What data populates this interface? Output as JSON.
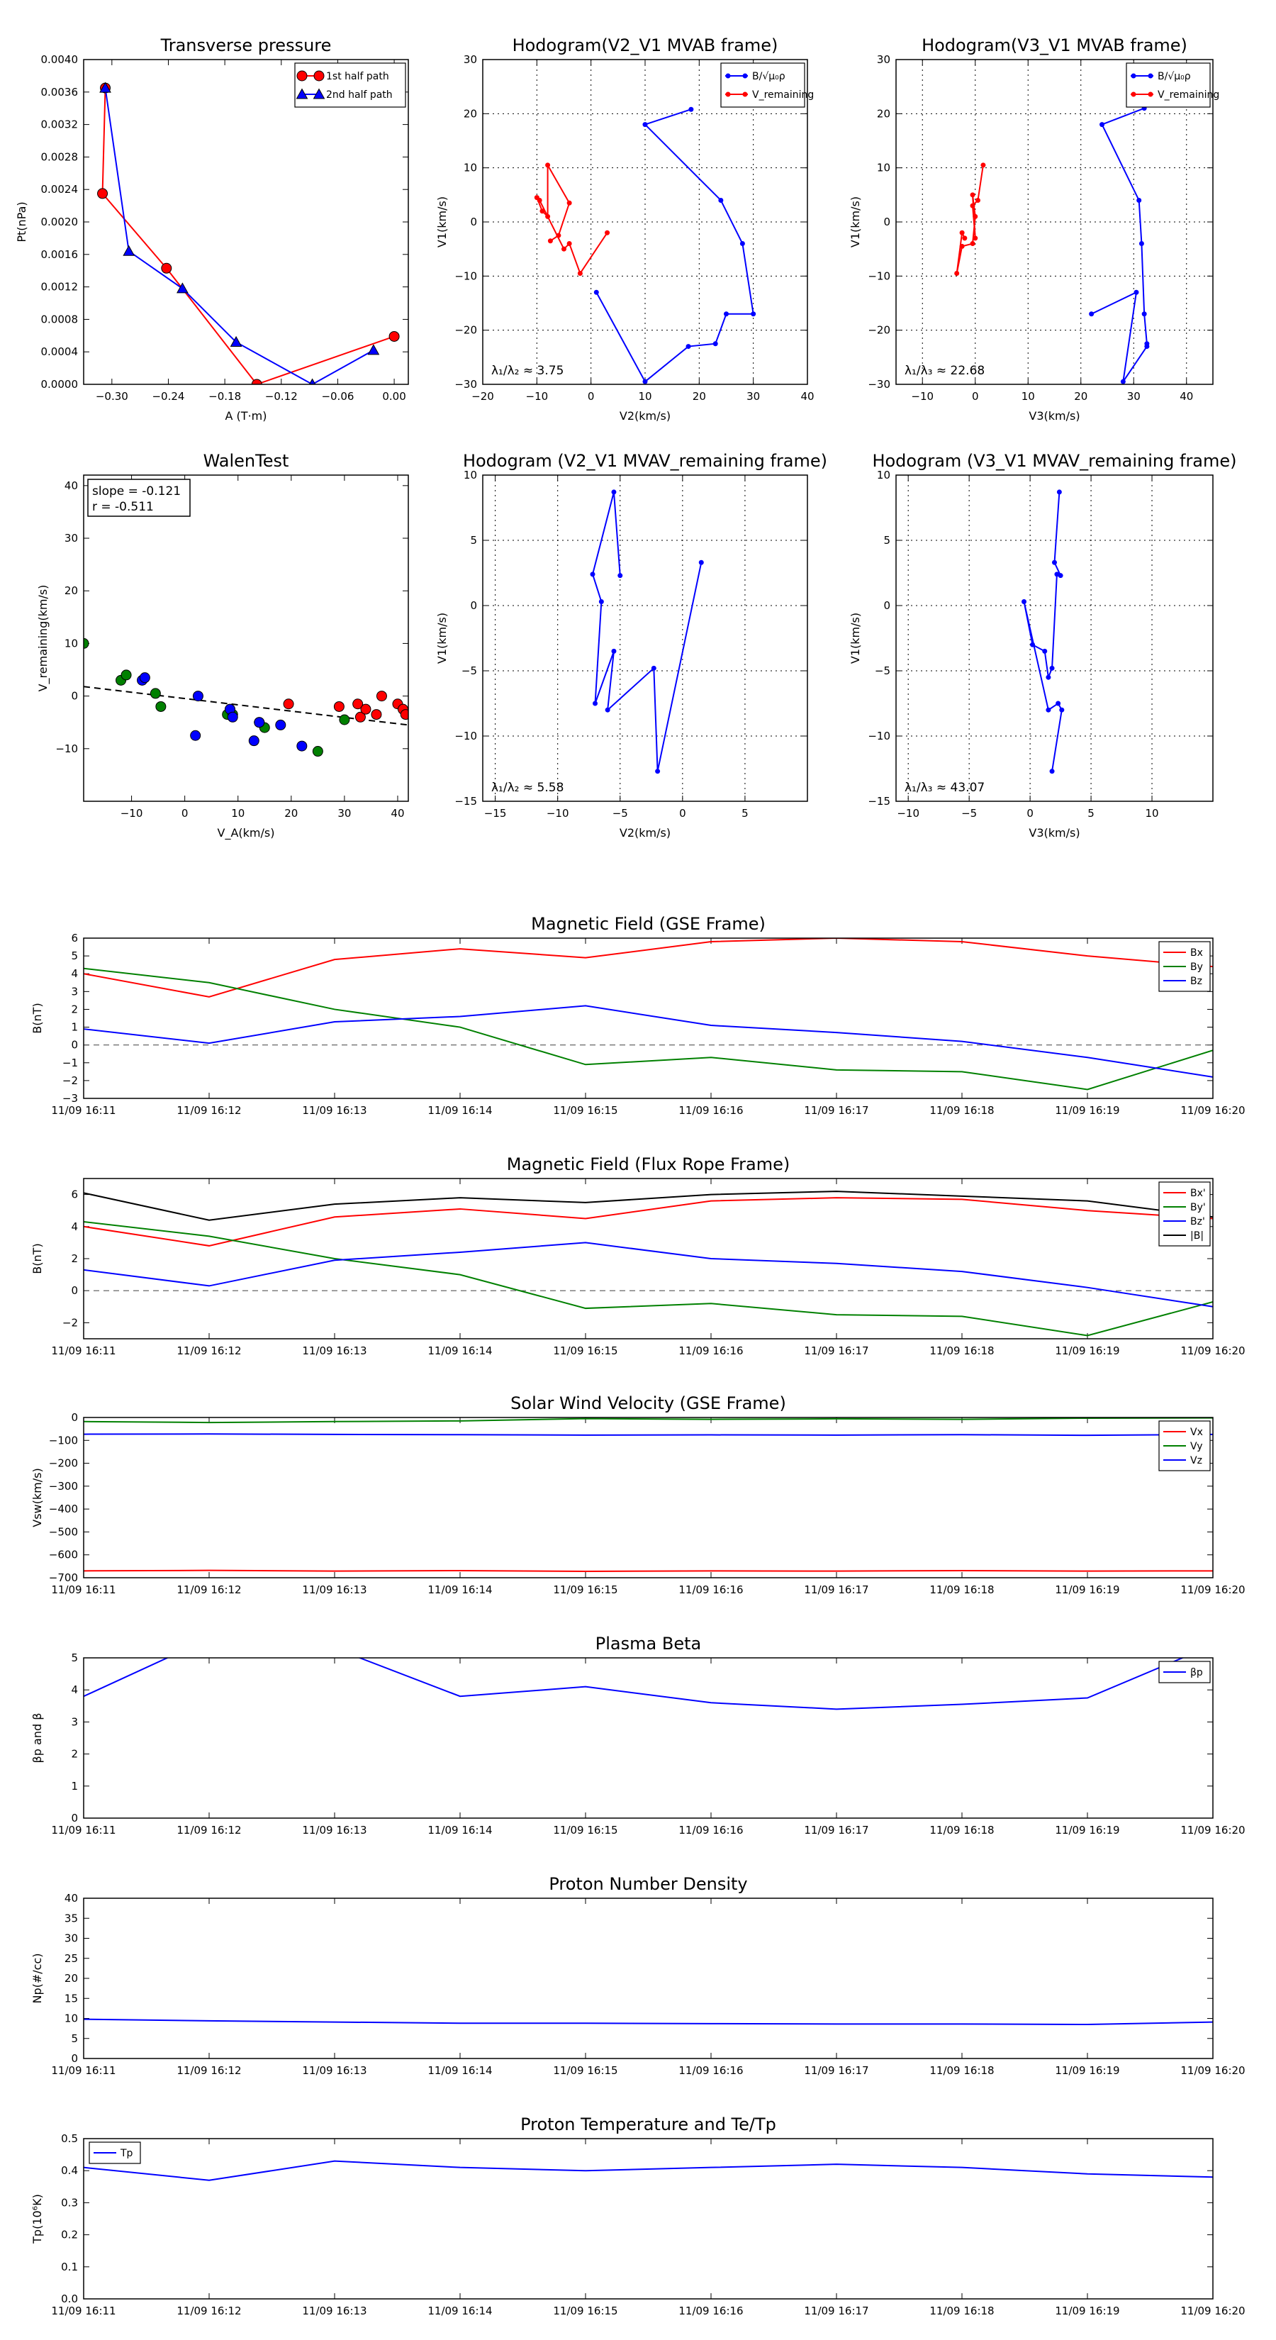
{
  "panels": [
    {
      "id": "tp",
      "title": "Transverse pressure",
      "xlabel": "A (T·m)",
      "ylabel": "Pt(nPa)",
      "xlim": [
        -0.33,
        0.015
      ],
      "ylim": [
        0,
        0.004
      ],
      "xticks": [
        -0.3,
        -0.24,
        -0.18,
        -0.12,
        -0.06,
        0.0
      ],
      "xticklabels": [
        "−0.30",
        "−0.24",
        "−0.18",
        "−0.12",
        "−0.06",
        "0.00"
      ],
      "yticks": [
        0,
        0.0004,
        0.0008,
        0.0012,
        0.0016,
        0.002,
        0.0024,
        0.0028,
        0.0032,
        0.0036,
        0.004
      ],
      "yticklabels": [
        "0.0000",
        "0.0004",
        "0.0008",
        "0.0012",
        "0.0016",
        "0.0020",
        "0.0024",
        "0.0028",
        "0.0032",
        "0.0036",
        "0.0040"
      ],
      "grid": false,
      "legend": "top-right",
      "series": [
        {
          "name": "1st half path",
          "color": "#ff0000",
          "marker": "circle",
          "x": [
            0.0,
            -0.146,
            -0.242,
            -0.31,
            -0.307
          ],
          "y": [
            0.00059,
            0.0,
            0.00143,
            0.00235,
            0.00365
          ]
        },
        {
          "name": "2nd half path",
          "color": "#0000ff",
          "marker": "triangle",
          "x": [
            -0.307,
            -0.282,
            -0.225,
            -0.168,
            -0.087,
            -0.022
          ],
          "y": [
            0.00365,
            0.00164,
            0.00118,
            0.00052,
            0.0,
            0.00042
          ]
        }
      ]
    },
    {
      "id": "h1",
      "title": "Hodogram(V2_V1 MVAB frame)",
      "xlabel": "V2(km/s)",
      "ylabel": "V1(km/s)",
      "xlim": [
        -20,
        40
      ],
      "ylim": [
        -30,
        30
      ],
      "xticks": [
        -20,
        -10,
        0,
        10,
        20,
        30,
        40
      ],
      "xticklabels": [
        "−20",
        "−10",
        "0",
        "10",
        "20",
        "30",
        "40"
      ],
      "yticks": [
        -30,
        -20,
        -10,
        0,
        10,
        20,
        30
      ],
      "yticklabels": [
        "−30",
        "−20",
        "−10",
        "0",
        "10",
        "20",
        "30"
      ],
      "grid": true,
      "legend": "top-right",
      "annotation": "λ₁/λ₂ ≈ 3.75",
      "series": [
        {
          "name": "B/√μ₀ρ",
          "color": "#0000ff",
          "marker": "dot",
          "x": [
            18.5,
            10,
            24,
            28,
            30,
            25,
            23,
            18,
            10,
            1
          ],
          "y": [
            20.8,
            18,
            4,
            -4,
            -17,
            -17,
            -22.5,
            -23,
            -29.5,
            -13
          ]
        },
        {
          "name": "V_remaining",
          "color": "#ff0000",
          "marker": "dot",
          "x": [
            3,
            -2,
            -4,
            -5,
            -9.5,
            -10,
            -9,
            -8,
            -8,
            -4,
            -6,
            -7.5
          ],
          "y": [
            -2,
            -9.5,
            -4,
            -5,
            4,
            4.5,
            2,
            1,
            10.5,
            3.5,
            -2.5,
            -3.5
          ]
        }
      ]
    },
    {
      "id": "h2",
      "title": "Hodogram(V3_V1 MVAB frame)",
      "xlabel": "V3(km/s)",
      "ylabel": "V1(km/s)",
      "xlim": [
        -15,
        45
      ],
      "ylim": [
        -30,
        30
      ],
      "xticks": [
        -10,
        0,
        10,
        20,
        30,
        40
      ],
      "xticklabels": [
        "−10",
        "0",
        "10",
        "20",
        "30",
        "40"
      ],
      "yticks": [
        -30,
        -20,
        -10,
        0,
        10,
        20,
        30
      ],
      "yticklabels": [
        "−30",
        "−20",
        "−10",
        "0",
        "10",
        "20",
        "30"
      ],
      "grid": true,
      "legend": "top-right",
      "annotation": "λ₁/λ₃ ≈ 22.68",
      "series": [
        {
          "name": "B/√μ₀ρ",
          "color": "#0000ff",
          "marker": "dot",
          "x": [
            32,
            24,
            31,
            31.5,
            32,
            32.5,
            32.5,
            28,
            30.5,
            22
          ],
          "y": [
            21,
            18,
            4,
            -4,
            -17,
            -22.5,
            -23,
            -29.5,
            -13,
            -17
          ]
        },
        {
          "name": "V_remaining",
          "color": "#ff0000",
          "marker": "dot",
          "x": [
            1.5,
            0.5,
            -0.5,
            0,
            -0.5,
            0,
            -0.5,
            -2.5,
            -3.5,
            -2.5,
            -2
          ],
          "y": [
            10.5,
            4,
            3,
            -3,
            5,
            1,
            -4,
            -4.5,
            -9.5,
            -2,
            -3
          ]
        }
      ]
    },
    {
      "id": "walen",
      "title": "WalenTest",
      "xlabel": "V_A(km/s)",
      "ylabel": "V_remaining(km/s)",
      "xlim": [
        -19,
        42
      ],
      "ylim": [
        -20,
        42
      ],
      "xticks": [
        -10,
        0,
        10,
        20,
        30,
        40
      ],
      "xticklabels": [
        "−10",
        "0",
        "10",
        "20",
        "30",
        "40"
      ],
      "yticks": [
        -10,
        0,
        10,
        20,
        30,
        40
      ],
      "yticklabels": [
        "−10",
        "0",
        "10",
        "20",
        "30",
        "40"
      ],
      "grid": false,
      "stats": {
        "slope": "slope = -0.121",
        "r": "r = -0.511"
      },
      "fit": {
        "x": [
          -19,
          42
        ],
        "y": [
          1.8,
          -5.5
        ]
      },
      "series": [
        {
          "name": "",
          "color": "#008000",
          "marker": "circle",
          "x": [
            -19,
            -12,
            -11,
            -5.5,
            -4.5,
            8,
            9,
            14,
            15,
            25,
            30
          ],
          "y": [
            10,
            3,
            4,
            0.5,
            -2,
            -3.5,
            -3.5,
            -5,
            -6,
            -10.5,
            -4.5
          ]
        },
        {
          "name": "",
          "color": "#0000ff",
          "marker": "circle",
          "x": [
            -8,
            -7.5,
            2,
            2.5,
            8.5,
            9,
            13,
            14,
            18,
            22
          ],
          "y": [
            3,
            3.5,
            -7.5,
            0,
            -2.5,
            -4,
            -8.5,
            -5,
            -5.5,
            -9.5
          ]
        },
        {
          "name": "",
          "color": "#ff0000",
          "marker": "circle",
          "x": [
            19.5,
            29,
            32.5,
            33,
            34,
            36,
            37,
            40,
            41,
            41.5
          ],
          "y": [
            -1.5,
            -2,
            -1.5,
            -4,
            -2.5,
            -3.5,
            0,
            -1.5,
            -2.5,
            -3.5
          ]
        }
      ]
    },
    {
      "id": "h3",
      "title": "Hodogram (V2_V1 MVAV_remaining frame)",
      "xlabel": "V2(km/s)",
      "ylabel": "V1(km/s)",
      "xlim": [
        -16,
        10
      ],
      "ylim": [
        -15,
        10
      ],
      "xticks": [
        -15,
        -10,
        -5,
        0,
        5
      ],
      "xticklabels": [
        "−15",
        "−10",
        "−5",
        "0",
        "5"
      ],
      "yticks": [
        -15,
        -10,
        -5,
        0,
        5,
        10
      ],
      "yticklabels": [
        "−15",
        "−10",
        "−5",
        "0",
        "5",
        "10"
      ],
      "grid": true,
      "legend": "none",
      "annotation": "λ₁/λ₂ ≈ 5.58",
      "series": [
        {
          "name": "",
          "color": "#0000ff",
          "marker": "dot",
          "x": [
            1.5,
            -2,
            -2.3,
            -6,
            -5.5,
            -7,
            -6.5,
            -7.2,
            -5.5,
            -5
          ],
          "y": [
            3.3,
            -12.7,
            -4.8,
            -8,
            -3.5,
            -7.5,
            0.3,
            2.4,
            8.7,
            2.3
          ]
        }
      ]
    },
    {
      "id": "h4",
      "title": "Hodogram (V3_V1 MVAV_remaining frame)",
      "xlabel": "V3(km/s)",
      "ylabel": "V1(km/s)",
      "xlim": [
        -11,
        15
      ],
      "ylim": [
        -15,
        10
      ],
      "xticks": [
        -10,
        -5,
        0,
        5,
        10
      ],
      "xticklabels": [
        "−10",
        "−5",
        "0",
        "5",
        "10"
      ],
      "yticks": [
        -15,
        -10,
        -5,
        0,
        5,
        10
      ],
      "yticklabels": [
        "−15",
        "−10",
        "−5",
        "0",
        "5",
        "10"
      ],
      "grid": true,
      "legend": "none",
      "annotation": "λ₁/λ₃ ≈ 43.07",
      "series": [
        {
          "name": "",
          "color": "#0000ff",
          "marker": "dot",
          "x": [
            2.4,
            2,
            2.5,
            2.2,
            1.8,
            1.5,
            1.2,
            0.2,
            -0.5,
            1.5,
            2.3,
            2.6,
            1.8
          ],
          "y": [
            8.7,
            3.3,
            2.3,
            2.4,
            -4.8,
            -5.5,
            -3.5,
            -3.0,
            0.3,
            -8,
            -7.5,
            -8,
            -12.7
          ]
        }
      ]
    },
    {
      "id": "bgse",
      "title": "Magnetic Field (GSE Frame)",
      "ylabel": "B(nT)",
      "ylim": [
        -3,
        6
      ],
      "yticks": [
        -3,
        -2,
        -1,
        0,
        1,
        2,
        3,
        4,
        5,
        6
      ],
      "yticklabels": [
        "−3",
        "−2",
        "−1",
        "0",
        "1",
        "2",
        "3",
        "4",
        "5",
        "6"
      ],
      "zero_line": true,
      "legend": "top-right",
      "series": [
        {
          "name": "Bx",
          "color": "#ff0000",
          "values": [
            4.0,
            2.7,
            4.8,
            5.4,
            4.9,
            5.8,
            6.0,
            5.8,
            5.0,
            4.4
          ]
        },
        {
          "name": "By",
          "color": "#008000",
          "values": [
            4.3,
            3.5,
            2.0,
            1.0,
            -1.1,
            -0.7,
            -1.4,
            -1.5,
            -2.5,
            -0.3
          ]
        },
        {
          "name": "Bz",
          "color": "#0000ff",
          "values": [
            0.9,
            0.1,
            1.3,
            1.6,
            2.2,
            1.1,
            0.7,
            0.2,
            -0.7,
            -1.8
          ]
        }
      ]
    },
    {
      "id": "bfr",
      "title": "Magnetic Field (Flux Rope Frame)",
      "ylabel": "B(nT)",
      "ylim": [
        -3,
        7
      ],
      "yticks": [
        -2,
        0,
        2,
        4,
        6
      ],
      "yticklabels": [
        "−2",
        "0",
        "2",
        "4",
        "6"
      ],
      "zero_line": true,
      "legend": "top-right",
      "series": [
        {
          "name": "Bx'",
          "color": "#ff0000",
          "values": [
            4.0,
            2.8,
            4.6,
            5.1,
            4.5,
            5.6,
            5.8,
            5.7,
            5.0,
            4.5
          ]
        },
        {
          "name": "By'",
          "color": "#008000",
          "values": [
            4.3,
            3.4,
            2.0,
            1.0,
            -1.1,
            -0.8,
            -1.5,
            -1.6,
            -2.8,
            -0.7
          ]
        },
        {
          "name": "Bz'",
          "color": "#0000ff",
          "values": [
            1.3,
            0.3,
            1.9,
            2.4,
            3.0,
            2.0,
            1.7,
            1.2,
            0.2,
            -1.0
          ]
        },
        {
          "name": "|B|",
          "color": "#000000",
          "values": [
            6.1,
            4.4,
            5.4,
            5.8,
            5.5,
            6.0,
            6.2,
            5.9,
            5.6,
            4.6
          ]
        }
      ]
    },
    {
      "id": "vsw",
      "title": "Solar Wind Velocity (GSE Frame)",
      "ylabel": "Vsw(km/s)",
      "ylim": [
        -700,
        0
      ],
      "yticks": [
        -700,
        -600,
        -500,
        -400,
        -300,
        -200,
        -100,
        0
      ],
      "yticklabels": [
        "−700",
        "−600",
        "−500",
        "−400",
        "−300",
        "−200",
        "−100",
        "0"
      ],
      "zero_line": false,
      "legend": "top-right",
      "series": [
        {
          "name": "Vx",
          "color": "#ff0000",
          "values": [
            -670,
            -668,
            -671,
            -669,
            -672,
            -670,
            -671,
            -669,
            -671,
            -670
          ]
        },
        {
          "name": "Vy",
          "color": "#008000",
          "values": [
            -18,
            -22,
            -18,
            -15,
            -5,
            -8,
            -6,
            -8,
            -3,
            -2
          ]
        },
        {
          "name": "Vz",
          "color": "#0000ff",
          "values": [
            -73,
            -72,
            -74,
            -75,
            -77,
            -76,
            -77,
            -75,
            -78,
            -74
          ]
        }
      ]
    },
    {
      "id": "beta",
      "title": "Plasma Beta",
      "ylabel": "βp and β",
      "ylim": [
        0,
        5
      ],
      "yticks": [
        0,
        1,
        2,
        3,
        4,
        5
      ],
      "yticklabels": [
        "0",
        "1",
        "2",
        "3",
        "4",
        "5"
      ],
      "zero_line": false,
      "legend": "top-right",
      "series": [
        {
          "name": "βp",
          "color": "#0000ff",
          "values": [
            3.8,
            5.6,
            5.3,
            3.8,
            4.1,
            3.6,
            3.4,
            3.55,
            3.75,
            5.4
          ]
        }
      ]
    },
    {
      "id": "np",
      "title": "Proton Number Density",
      "ylabel": "Np(#/cc)",
      "ylim": [
        0,
        40
      ],
      "yticks": [
        0,
        5,
        10,
        15,
        20,
        25,
        30,
        35,
        40
      ],
      "yticklabels": [
        "0",
        "5",
        "10",
        "15",
        "20",
        "25",
        "30",
        "35",
        "40"
      ],
      "zero_line": false,
      "legend": "none",
      "series": [
        {
          "name": "",
          "color": "#0000ff",
          "values": [
            9.8,
            9.4,
            9.1,
            8.8,
            8.8,
            8.7,
            8.6,
            8.6,
            8.5,
            9.1
          ]
        }
      ]
    },
    {
      "id": "tp2",
      "title": "Proton Temperature and Te/Tp",
      "ylabel": "Tp(10⁶K)",
      "ylim": [
        0,
        0.5
      ],
      "yticks": [
        0,
        0.1,
        0.2,
        0.3,
        0.4,
        0.5
      ],
      "yticklabels": [
        "0.0",
        "0.1",
        "0.2",
        "0.3",
        "0.4",
        "0.5"
      ],
      "zero_line": false,
      "legend": "top-left",
      "series": [
        {
          "name": "Tp",
          "color": "#0000ff",
          "values": [
            0.41,
            0.37,
            0.43,
            0.41,
            0.4,
            0.41,
            0.42,
            0.41,
            0.39,
            0.38
          ]
        }
      ]
    }
  ],
  "time_axis": {
    "ticklabels": [
      "11/09 16:11",
      "11/09 16:12",
      "11/09 16:13",
      "11/09 16:14",
      "11/09 16:15",
      "11/09 16:16",
      "11/09 16:17",
      "11/09 16:18",
      "11/09 16:19",
      "11/09 16:20"
    ]
  }
}
